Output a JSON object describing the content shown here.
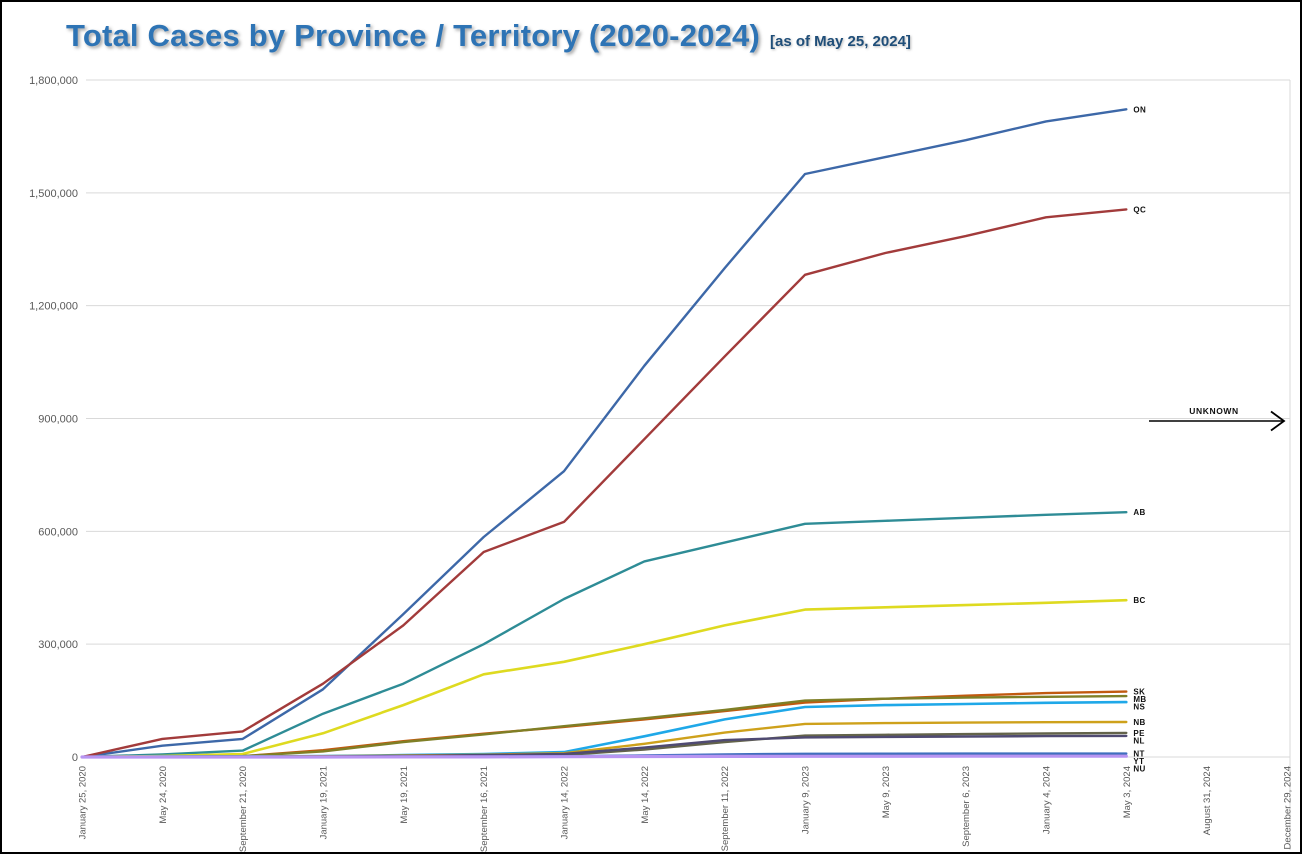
{
  "page": {
    "title": "Total Cases by Province / Territory (2020-2024)",
    "subtitle": "[as of May 25, 2024]",
    "title_color": "#2E74B5",
    "subtitle_color": "#1F4E79"
  },
  "chart_data": {
    "type": "line",
    "title": "Total Cases by Province / Territory (2020-2024)",
    "subtitle": "[as of May 25, 2024]",
    "xlabel": "",
    "ylabel": "",
    "ylim": [
      0,
      1800000
    ],
    "y_tick_step": 300000,
    "grid": true,
    "legend_position": "line-end-labels",
    "data_ends_at": "May 3, 2024",
    "y_tick_labels": [
      "0",
      "300,000",
      "600,000",
      "900,000",
      "1,200,000",
      "1,500,000",
      "1,800,000"
    ],
    "x_tick_labels": [
      "January 25, 2020",
      "May 24, 2020",
      "September 21, 2020",
      "January 19, 2021",
      "May 19, 2021",
      "September 16, 2021",
      "January 14, 2022",
      "May 14, 2022",
      "September 11, 2022",
      "January 9, 2023",
      "May 9, 2023",
      "September 6, 2023",
      "January 4, 2024",
      "May 3, 2024",
      "August 31, 2024",
      "December 29, 2024"
    ],
    "annotation": {
      "text": "UNKNOWN",
      "arrow": "right",
      "near_y_value": 900000
    },
    "series": [
      {
        "name": "ON",
        "color": "#3D68A8",
        "width": 2.4,
        "values": [
          0,
          30000,
          48000,
          180000,
          380000,
          585000,
          760000,
          1040000,
          1300000,
          1550000,
          1595000,
          1640000,
          1690000,
          1722000
        ]
      },
      {
        "name": "QC",
        "color": "#A23B3B",
        "width": 2.4,
        "values": [
          0,
          48000,
          68000,
          195000,
          350000,
          545000,
          625000,
          845000,
          1065000,
          1282000,
          1340000,
          1385000,
          1435000,
          1456000
        ]
      },
      {
        "name": "AB",
        "color": "#2E8C96",
        "width": 2.4,
        "values": [
          0,
          7000,
          17000,
          115000,
          195000,
          300000,
          420000,
          520000,
          570000,
          620000,
          628000,
          636000,
          644000,
          651000
        ]
      },
      {
        "name": "BC",
        "color": "#DEDA20",
        "width": 2.6,
        "values": [
          0,
          2500,
          8000,
          63000,
          138000,
          220000,
          253000,
          300000,
          350000,
          392000,
          398000,
          404000,
          410000,
          417000
        ]
      },
      {
        "name": "SK",
        "color": "#C1590F",
        "width": 2.4,
        "values": [
          0,
          700,
          2000,
          18000,
          42000,
          62000,
          80000,
          100000,
          122000,
          145000,
          155000,
          163000,
          170000,
          174000
        ]
      },
      {
        "name": "MB",
        "color": "#7F7F26",
        "width": 2.4,
        "values": [
          0,
          600,
          2500,
          15000,
          40000,
          60000,
          82000,
          103000,
          125000,
          150000,
          155000,
          158000,
          160000,
          162000
        ]
      },
      {
        "name": "NS",
        "color": "#1FA8E8",
        "width": 2.6,
        "values": [
          0,
          1000,
          1200,
          2500,
          5000,
          8000,
          13000,
          55000,
          100000,
          133000,
          138000,
          141000,
          144000,
          146000
        ]
      },
      {
        "name": "NB",
        "color": "#CEA11B",
        "width": 2.4,
        "values": [
          0,
          300,
          800,
          2000,
          4000,
          6000,
          10000,
          35000,
          65000,
          88000,
          90000,
          91500,
          92500,
          93000
        ]
      },
      {
        "name": "PE",
        "color": "#63634A",
        "width": 2.4,
        "values": [
          0,
          30,
          60,
          300,
          1000,
          2000,
          5000,
          20000,
          40000,
          57000,
          59000,
          61000,
          62500,
          64000
        ]
      },
      {
        "name": "NL",
        "color": "#4F4A72",
        "width": 2.4,
        "values": [
          0,
          300,
          700,
          1500,
          3000,
          5000,
          8000,
          25000,
          45000,
          52000,
          53500,
          54500,
          55500,
          56000
        ]
      },
      {
        "name": "NT",
        "color": "#3F6FBF",
        "width": 2.4,
        "values": [
          0,
          0,
          10,
          200,
          500,
          1000,
          2000,
          4000,
          7000,
          8500,
          8800,
          9000,
          9000,
          9000
        ]
      },
      {
        "name": "YT",
        "color": "#5E4B8B",
        "width": 1.8,
        "values": [
          0,
          0,
          10,
          100,
          300,
          700,
          1200,
          2200,
          3200,
          3700,
          3800,
          3900,
          4000,
          4000
        ]
      },
      {
        "name": "NU",
        "color": "#B895F2",
        "width": 3.2,
        "values": [
          0,
          0,
          0,
          50,
          150,
          350,
          700,
          1300,
          1700,
          1900,
          1950,
          2000,
          2000,
          2000
        ]
      }
    ]
  }
}
